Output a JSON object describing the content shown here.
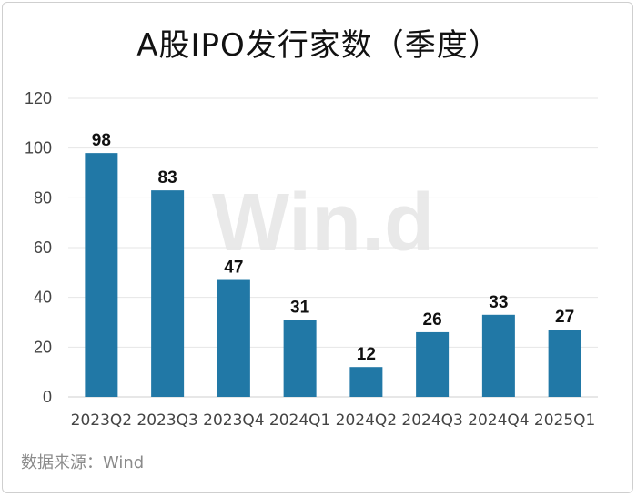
{
  "chart_data": {
    "type": "bar",
    "title": "A股IPO发行家数（季度）",
    "categories": [
      "2023Q2",
      "2023Q3",
      "2023Q4",
      "2024Q1",
      "2024Q2",
      "2024Q3",
      "2024Q4",
      "2025Q1"
    ],
    "values": [
      98,
      83,
      47,
      31,
      12,
      26,
      33,
      27
    ],
    "ylim": [
      0,
      120
    ],
    "yticks": [
      0,
      20,
      40,
      60,
      80,
      100,
      120
    ],
    "grid": true,
    "bar_color": "#2178a6",
    "data_labels": true
  },
  "source": "数据来源：Wind",
  "watermark": "Win.d"
}
